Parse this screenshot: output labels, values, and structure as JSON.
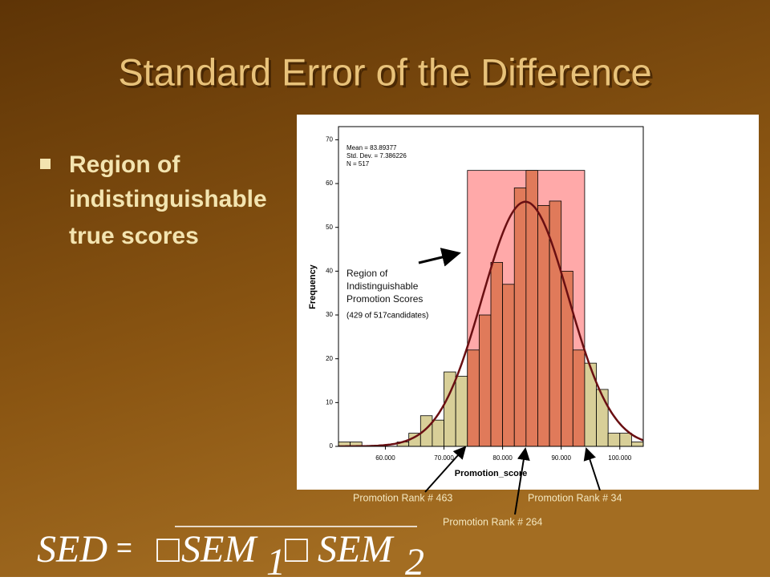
{
  "slide": {
    "title": "Standard Error of the Difference",
    "bullets": [
      "Region of",
      "indistinguishable",
      "true scores"
    ],
    "formula": [
      "SED",
      "=",
      "□",
      "SEM",
      "1",
      "□",
      "SEM",
      "2"
    ]
  },
  "chart_data": {
    "type": "histogram",
    "x_label": "Promotion_score",
    "y_label": "Frequency",
    "stats": [
      {
        "value": 83.89377,
        "label": "Mean = 83.89377"
      },
      {
        "value": 7.386226,
        "label": "Std. Dev. = 7.386226"
      },
      {
        "value": 517,
        "label": "N = 517"
      }
    ],
    "bins": [
      52,
      54,
      56,
      58,
      60,
      62,
      64,
      66,
      68,
      70,
      72,
      74,
      76,
      78,
      80,
      82,
      84,
      86,
      88,
      90,
      92,
      94,
      96,
      98,
      100,
      102,
      104
    ],
    "values": [
      1,
      1,
      0,
      0,
      0,
      1,
      3,
      7,
      6,
      17,
      16,
      22,
      30,
      42,
      37,
      59,
      63,
      55,
      56,
      40,
      22,
      19,
      13,
      3,
      3,
      1
    ],
    "color": "#d8cf98",
    "region_color": "#e07a5a",
    "region_fill": "#ffa9a9",
    "curve_color": "#6a0f12",
    "region": [
      74,
      94
    ],
    "region_label": [
      "Region of",
      "Indistinguishable",
      "Promotion Scores",
      "(429 of 517candidates)"
    ],
    "rank_labels": [
      "Promotion Rank # 463",
      "Promotion Rank # 34",
      "Promotion Rank # 264"
    ],
    "xlim": [
      52,
      104
    ],
    "ylim": [
      0,
      73
    ],
    "xticks": [
      {
        "value": 60,
        "label": "60.000"
      },
      {
        "value": 70,
        "label": "70.000"
      },
      {
        "value": 80,
        "label": "80.000"
      },
      {
        "value": 90,
        "label": "90.000"
      },
      {
        "value": 100,
        "label": "100.000"
      }
    ],
    "yticks": [
      0,
      10,
      20,
      30,
      40,
      50,
      60,
      70
    ]
  }
}
